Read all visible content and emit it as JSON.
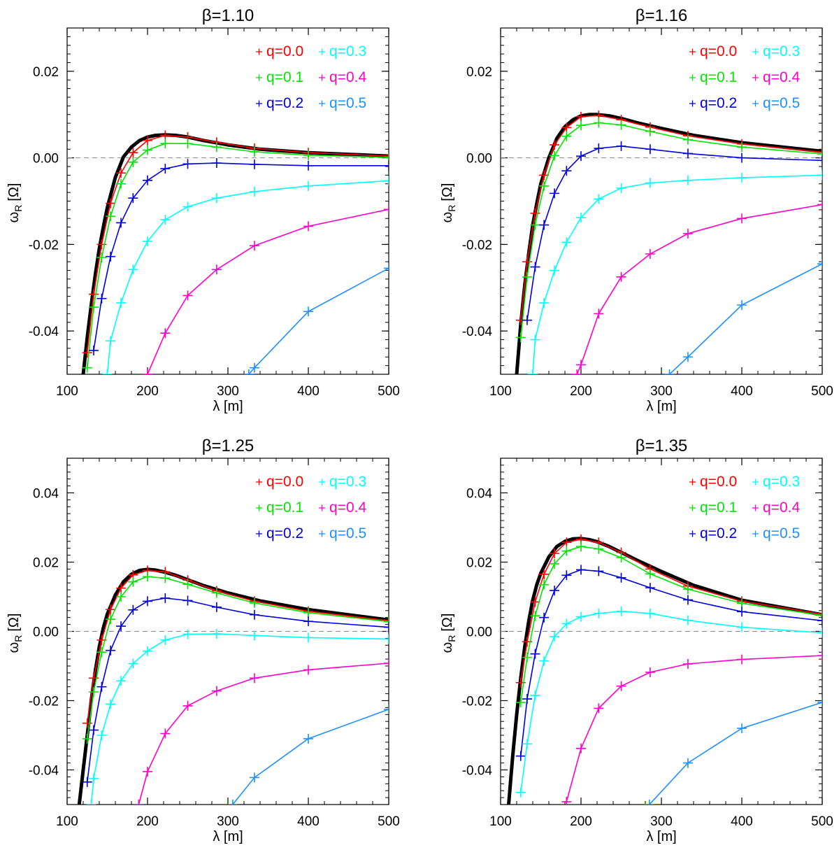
{
  "chart_data": [
    {
      "type": "line",
      "title": "β=1.10",
      "xlabel": "λ [m]",
      "ylabel_main": "ω",
      "ylabel_sub": "R",
      "ylabel_unit": "[Ω]",
      "xlim": [
        100,
        500
      ],
      "ylim": [
        -0.05,
        0.03
      ],
      "xticks": [
        100,
        200,
        300,
        400,
        500
      ],
      "xtick_labels": [
        "100",
        "200",
        "300",
        "400",
        "500"
      ],
      "yticks": [
        -0.04,
        -0.02,
        0.0,
        0.02
      ],
      "ytick_labels": [
        "-0.04",
        "-0.02",
        "0.00",
        "0.02"
      ],
      "reference_line_y": 0,
      "black_curve": {
        "x": [
          120,
          125,
          130,
          135,
          140,
          145,
          150,
          160,
          170,
          180,
          190,
          200,
          210,
          222,
          235,
          250,
          270,
          300,
          340,
          400,
          500
        ],
        "y": [
          -0.05,
          -0.0415,
          -0.034,
          -0.027,
          -0.021,
          -0.016,
          -0.0115,
          -0.0045,
          0.0002,
          0.0025,
          0.004,
          0.0048,
          0.0052,
          0.0053,
          0.0052,
          0.0048,
          0.004,
          0.003,
          0.002,
          0.0012,
          0.0004
        ]
      },
      "series": [
        {
          "name": "q=0.0",
          "x": [
            125,
            133,
            143,
            154,
            167,
            182,
            200,
            222,
            250,
            286,
            333,
            400,
            500
          ],
          "y": [
            -0.045,
            -0.0315,
            -0.02,
            -0.0105,
            -0.0035,
            0.0012,
            0.004,
            0.0052,
            0.0048,
            0.0036,
            0.0022,
            0.0012,
            0.0004
          ]
        },
        {
          "name": "q=0.1",
          "x": [
            125,
            133,
            143,
            154,
            167,
            182,
            200,
            222,
            250,
            286,
            333,
            400,
            500
          ],
          "y": [
            -0.0485,
            -0.0345,
            -0.023,
            -0.0135,
            -0.006,
            -0.001,
            0.0018,
            0.0033,
            0.0033,
            0.0025,
            0.0014,
            0.0006,
            0.0001
          ]
        },
        {
          "name": "q=0.2",
          "x": [
            133,
            143,
            154,
            167,
            182,
            200,
            222,
            250,
            286,
            333,
            400,
            500
          ],
          "y": [
            -0.0445,
            -0.0325,
            -0.0228,
            -0.015,
            -0.0093,
            -0.0052,
            -0.0025,
            -0.0014,
            -0.0012,
            -0.0015,
            -0.0018,
            -0.0018
          ]
        },
        {
          "name": "q=0.3",
          "x": [
            150,
            154,
            167,
            182,
            200,
            222,
            250,
            286,
            333,
            400,
            500
          ],
          "y": [
            -0.05,
            -0.0423,
            -0.0335,
            -0.0258,
            -0.0193,
            -0.0143,
            -0.0113,
            -0.0093,
            -0.0078,
            -0.0065,
            -0.0053
          ]
        },
        {
          "name": "q=0.4",
          "x": [
            200,
            222,
            250,
            286,
            333,
            400,
            500
          ],
          "y": [
            -0.05,
            -0.0405,
            -0.0318,
            -0.0258,
            -0.0203,
            -0.0158,
            -0.0119
          ]
        },
        {
          "name": "q=0.5",
          "x": [
            326,
            333,
            400,
            500
          ],
          "y": [
            -0.05,
            -0.0485,
            -0.0355,
            -0.0255
          ]
        }
      ]
    },
    {
      "type": "line",
      "title": "β=1.16",
      "xlabel": "λ [m]",
      "ylabel_main": "ω",
      "ylabel_sub": "R",
      "ylabel_unit": "[Ω]",
      "xlim": [
        100,
        500
      ],
      "ylim": [
        -0.05,
        0.03
      ],
      "xticks": [
        100,
        200,
        300,
        400,
        500
      ],
      "xtick_labels": [
        "100",
        "200",
        "300",
        "400",
        "500"
      ],
      "yticks": [
        -0.04,
        -0.02,
        0.0,
        0.02
      ],
      "ytick_labels": [
        "-0.04",
        "-0.02",
        "0.00",
        "0.02"
      ],
      "reference_line_y": 0,
      "black_curve": {
        "x": [
          120,
          125,
          130,
          135,
          140,
          145,
          150,
          160,
          170,
          180,
          190,
          200,
          210,
          220,
          235,
          250,
          270,
          300,
          340,
          400,
          500
        ],
        "y": [
          -0.05,
          -0.0385,
          -0.0295,
          -0.022,
          -0.0155,
          -0.0105,
          -0.006,
          0.0,
          0.0045,
          0.0072,
          0.0088,
          0.0097,
          0.01,
          0.01,
          0.0097,
          0.0091,
          0.0081,
          0.0068,
          0.0052,
          0.0035,
          0.0015
        ]
      },
      "series": [
        {
          "name": "q=0.0",
          "x": [
            125,
            133,
            143,
            154,
            167,
            182,
            200,
            222,
            250,
            286,
            333,
            400,
            500
          ],
          "y": [
            -0.0375,
            -0.024,
            -0.0128,
            -0.004,
            0.003,
            0.007,
            0.0095,
            0.0098,
            0.0088,
            0.0071,
            0.0051,
            0.0032,
            0.0013
          ]
        },
        {
          "name": "q=0.1",
          "x": [
            125,
            133,
            143,
            154,
            167,
            182,
            200,
            222,
            250,
            286,
            333,
            400,
            500
          ],
          "y": [
            -0.0415,
            -0.0275,
            -0.0155,
            -0.0065,
            0.0005,
            0.005,
            0.0075,
            0.0081,
            0.0076,
            0.0061,
            0.0042,
            0.0025,
            0.0009
          ]
        },
        {
          "name": "q=0.2",
          "x": [
            133,
            143,
            154,
            167,
            182,
            200,
            222,
            250,
            286,
            333,
            400,
            500
          ],
          "y": [
            -0.0375,
            -0.0252,
            -0.0155,
            -0.0082,
            -0.003,
            0.0004,
            0.0022,
            0.0027,
            0.002,
            0.001,
            0.0,
            -0.0006
          ]
        },
        {
          "name": "q=0.3",
          "x": [
            140,
            143,
            154,
            167,
            182,
            200,
            222,
            250,
            286,
            333,
            400,
            500
          ],
          "y": [
            -0.05,
            -0.042,
            -0.0335,
            -0.026,
            -0.0195,
            -0.0138,
            -0.0095,
            -0.007,
            -0.0058,
            -0.0052,
            -0.0046,
            -0.004
          ]
        },
        {
          "name": "q=0.4",
          "x": [
            195,
            200,
            222,
            250,
            286,
            333,
            400,
            500
          ],
          "y": [
            -0.05,
            -0.0478,
            -0.036,
            -0.0275,
            -0.0222,
            -0.0175,
            -0.014,
            -0.0108
          ]
        },
        {
          "name": "q=0.5",
          "x": [
            310,
            333,
            400,
            500
          ],
          "y": [
            -0.05,
            -0.046,
            -0.034,
            -0.0245
          ]
        }
      ]
    },
    {
      "type": "line",
      "title": "β=1.25",
      "xlabel": "λ [m]",
      "ylabel_main": "ω",
      "ylabel_sub": "R",
      "ylabel_unit": "[Ω]",
      "xlim": [
        100,
        500
      ],
      "ylim": [
        -0.05,
        0.05
      ],
      "xticks": [
        100,
        200,
        300,
        400,
        500
      ],
      "xtick_labels": [
        "100",
        "200",
        "300",
        "400",
        "500"
      ],
      "yticks": [
        -0.04,
        -0.02,
        0.0,
        0.02,
        0.04
      ],
      "ytick_labels": [
        "-0.04",
        "-0.02",
        "0.00",
        "0.02",
        "0.04"
      ],
      "reference_line_y": 0,
      "black_curve": {
        "x": [
          115,
          120,
          125,
          130,
          135,
          140,
          145,
          150,
          160,
          170,
          180,
          190,
          200,
          210,
          220,
          235,
          250,
          270,
          300,
          340,
          400,
          500
        ],
        "y": [
          -0.05,
          -0.04,
          -0.03,
          -0.02,
          -0.0115,
          -0.0045,
          0.001,
          0.005,
          0.0105,
          0.0143,
          0.0165,
          0.0176,
          0.0179,
          0.0177,
          0.0172,
          0.0162,
          0.0149,
          0.0132,
          0.0111,
          0.0088,
          0.0063,
          0.0033
        ]
      },
      "series": [
        {
          "name": "q=0.0",
          "x": [
            125,
            133,
            143,
            154,
            167,
            182,
            200,
            222,
            250,
            286,
            333,
            400,
            500
          ],
          "y": [
            -0.0265,
            -0.0135,
            -0.0025,
            0.0063,
            0.0125,
            0.0163,
            0.0176,
            0.0172,
            0.0148,
            0.0117,
            0.0087,
            0.0058,
            0.0031
          ]
        },
        {
          "name": "q=0.1",
          "x": [
            125,
            133,
            143,
            154,
            167,
            182,
            200,
            222,
            250,
            286,
            333,
            400,
            500
          ],
          "y": [
            -0.031,
            -0.0175,
            -0.006,
            0.0035,
            0.01,
            0.0143,
            0.0158,
            0.0154,
            0.0136,
            0.0111,
            0.0082,
            0.0054,
            0.0028
          ]
        },
        {
          "name": "q=0.2",
          "x": [
            125,
            133,
            143,
            154,
            167,
            182,
            200,
            222,
            250,
            286,
            333,
            400,
            500
          ],
          "y": [
            -0.0435,
            -0.0285,
            -0.016,
            -0.0055,
            0.0015,
            0.0062,
            0.0087,
            0.0096,
            0.0089,
            0.007,
            0.0048,
            0.0029,
            0.0012
          ]
        },
        {
          "name": "q=0.3",
          "x": [
            130,
            133,
            143,
            154,
            167,
            182,
            200,
            222,
            250,
            286,
            333,
            400,
            500
          ],
          "y": [
            -0.05,
            -0.0425,
            -0.03,
            -0.021,
            -0.0143,
            -0.0093,
            -0.0057,
            -0.0025,
            -0.0008,
            -0.0007,
            -0.0012,
            -0.0018,
            -0.0022
          ]
        },
        {
          "name": "q=0.4",
          "x": [
            189,
            200,
            222,
            250,
            286,
            333,
            400,
            500
          ],
          "y": [
            -0.05,
            -0.0405,
            -0.0295,
            -0.0215,
            -0.0172,
            -0.0135,
            -0.0111,
            -0.0092
          ]
        },
        {
          "name": "q=0.5",
          "x": [
            306,
            333,
            400,
            500
          ],
          "y": [
            -0.05,
            -0.0422,
            -0.031,
            -0.0225
          ]
        }
      ]
    },
    {
      "type": "line",
      "title": "β=1.35",
      "xlabel": "λ [m]",
      "ylabel_main": "ω",
      "ylabel_sub": "R",
      "ylabel_unit": "[Ω]",
      "xlim": [
        100,
        500
      ],
      "ylim": [
        -0.05,
        0.05
      ],
      "xticks": [
        100,
        200,
        300,
        400,
        500
      ],
      "xtick_labels": [
        "100",
        "200",
        "300",
        "400",
        "500"
      ],
      "yticks": [
        -0.04,
        -0.02,
        0.0,
        0.02,
        0.04
      ],
      "ytick_labels": [
        "-0.04",
        "-0.02",
        "0.00",
        "0.02",
        "0.04"
      ],
      "reference_line_y": 0,
      "black_curve": {
        "x": [
          110,
          115,
          120,
          125,
          130,
          135,
          140,
          145,
          150,
          160,
          170,
          180,
          190,
          200,
          210,
          220,
          235,
          250,
          270,
          300,
          340,
          400,
          500
        ],
        "y": [
          -0.05,
          -0.036,
          -0.024,
          -0.0135,
          -0.0045,
          0.003,
          0.009,
          0.0135,
          0.0168,
          0.0215,
          0.0245,
          0.026,
          0.0267,
          0.0268,
          0.0265,
          0.0259,
          0.0245,
          0.0228,
          0.0205,
          0.0173,
          0.0133,
          0.009,
          0.0048
        ]
      },
      "series": [
        {
          "name": "q=0.0",
          "x": [
            125,
            133,
            143,
            154,
            167,
            182,
            200,
            222,
            250,
            286,
            333,
            400,
            500
          ],
          "y": [
            -0.0148,
            -0.003,
            0.0085,
            0.0165,
            0.0225,
            0.0257,
            0.0266,
            0.0257,
            0.0228,
            0.018,
            0.0131,
            0.0087,
            0.005
          ]
        },
        {
          "name": "q=0.1",
          "x": [
            125,
            133,
            143,
            154,
            167,
            182,
            200,
            222,
            250,
            286,
            333,
            400,
            500
          ],
          "y": [
            -0.0205,
            -0.0075,
            0.0045,
            0.0135,
            0.0195,
            0.0232,
            0.0245,
            0.0238,
            0.0213,
            0.0166,
            0.0122,
            0.0081,
            0.0046
          ]
        },
        {
          "name": "q=0.2",
          "x": [
            125,
            133,
            143,
            154,
            167,
            182,
            200,
            222,
            250,
            286,
            333,
            400,
            500
          ],
          "y": [
            -0.036,
            -0.0195,
            -0.0065,
            0.004,
            0.0118,
            0.0162,
            0.0178,
            0.0174,
            0.0155,
            0.0126,
            0.0091,
            0.0057,
            0.0031
          ]
        },
        {
          "name": "q=0.3",
          "x": [
            125,
            133,
            143,
            154,
            167,
            182,
            200,
            222,
            250,
            286,
            333,
            400,
            500
          ],
          "y": [
            -0.0465,
            -0.0325,
            -0.0185,
            -0.0085,
            -0.0015,
            0.0022,
            0.0042,
            0.0052,
            0.0058,
            0.0052,
            0.0032,
            0.0012,
            -0.0004
          ]
        },
        {
          "name": "q=0.4",
          "x": [
            182,
            200,
            222,
            250,
            286,
            333,
            400,
            500
          ],
          "y": [
            -0.0492,
            -0.0338,
            -0.0222,
            -0.0158,
            -0.0118,
            -0.0094,
            -0.0081,
            -0.007
          ]
        },
        {
          "name": "q=0.5",
          "x": [
            285,
            333,
            400,
            500
          ],
          "y": [
            -0.05,
            -0.038,
            -0.028,
            -0.0205
          ]
        }
      ]
    }
  ],
  "colors": {
    "q=0.0": "#ff0000",
    "q=0.1": "#00e600",
    "q=0.2": "#0000dd",
    "q=0.3": "#00ffff",
    "q=0.4": "#ff00cc",
    "q=0.5": "#1e90ff",
    "black_curve": "#000000",
    "reference_line": "#888888"
  }
}
